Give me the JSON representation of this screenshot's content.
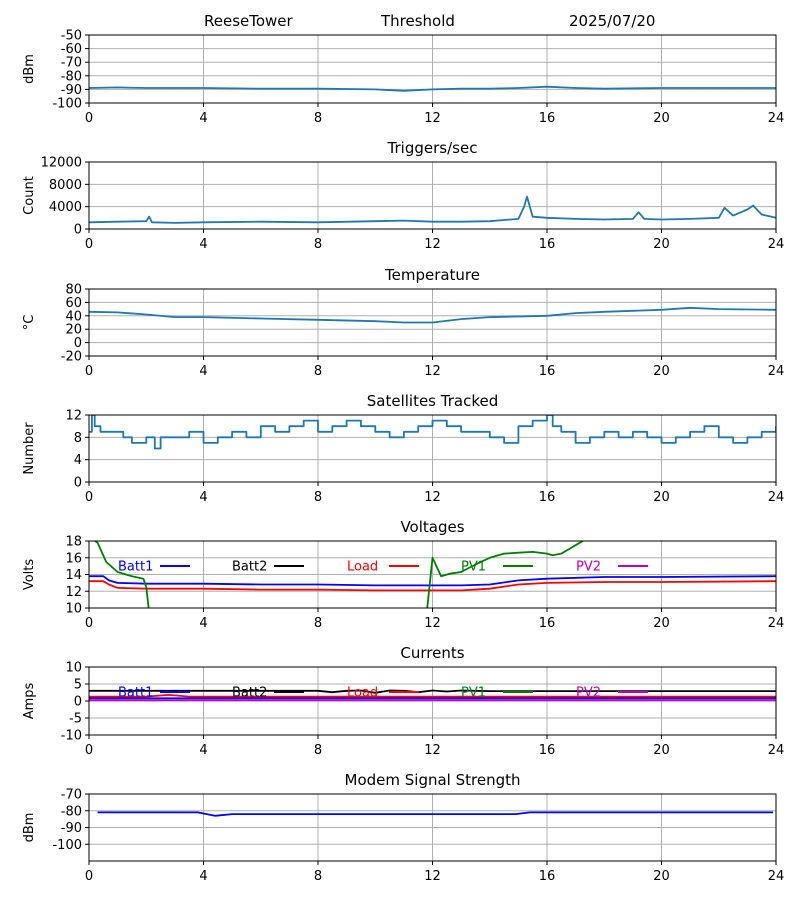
{
  "header": {
    "site": "ReeseTower",
    "mode": "Threshold",
    "date": "2025/07/20"
  },
  "chart_data": [
    {
      "type": "line",
      "title": "",
      "xlabel": "",
      "ylabel": "dBm",
      "xlim": [
        0,
        24
      ],
      "xticks": [
        0,
        4,
        8,
        12,
        16,
        20,
        24
      ],
      "ylim": [
        -100,
        -50
      ],
      "yticks": [
        -100,
        -90,
        -80,
        -70,
        -60,
        -50
      ],
      "grid": true,
      "series": [
        {
          "color": "#1f77b4",
          "x": [
            0,
            1,
            2,
            3,
            4,
            6,
            8,
            10,
            11,
            12,
            13,
            14,
            15,
            16,
            17,
            18,
            20,
            22,
            24
          ],
          "y": [
            -89,
            -88.5,
            -89,
            -89,
            -89,
            -89.5,
            -89.5,
            -90,
            -91,
            -90,
            -89.5,
            -89.5,
            -89,
            -88,
            -89,
            -89.5,
            -89,
            -89,
            -89
          ]
        }
      ]
    },
    {
      "type": "line",
      "title": "Triggers/sec",
      "xlabel": "",
      "ylabel": "Count",
      "xlim": [
        0,
        24
      ],
      "xticks": [
        0,
        4,
        8,
        12,
        16,
        20,
        24
      ],
      "ylim": [
        0,
        12000
      ],
      "yticks": [
        0,
        4000,
        8000,
        12000
      ],
      "grid": true,
      "series": [
        {
          "color": "#1f77b4",
          "x": [
            0,
            1,
            2,
            2.1,
            2.2,
            3,
            4,
            6,
            8,
            10,
            11,
            12,
            13,
            14,
            15,
            15.2,
            15.3,
            15.5,
            16,
            17,
            18,
            19,
            19.2,
            19.4,
            20,
            21,
            22,
            22.2,
            22.5,
            23,
            23.2,
            23.5,
            24
          ],
          "y": [
            1200,
            1300,
            1400,
            2200,
            1200,
            1100,
            1200,
            1300,
            1200,
            1400,
            1500,
            1300,
            1300,
            1400,
            1800,
            4000,
            5800,
            2200,
            2000,
            1800,
            1700,
            1800,
            3000,
            1800,
            1700,
            1800,
            2000,
            3800,
            2400,
            3500,
            4200,
            2600,
            2000
          ]
        }
      ]
    },
    {
      "type": "line",
      "title": "Temperature",
      "xlabel": "",
      "ylabel": "°C",
      "xlim": [
        0,
        24
      ],
      "xticks": [
        0,
        4,
        8,
        12,
        16,
        20,
        24
      ],
      "ylim": [
        -20,
        80
      ],
      "yticks": [
        -20,
        0,
        20,
        40,
        60,
        80
      ],
      "grid": true,
      "series": [
        {
          "color": "#1f77b4",
          "x": [
            0,
            1,
            2,
            3,
            4,
            6,
            8,
            10,
            11,
            12,
            13,
            14,
            16,
            17,
            18,
            20,
            21,
            22,
            24
          ],
          "y": [
            46,
            45,
            42,
            38,
            38,
            36,
            34,
            32,
            30,
            30,
            35,
            38,
            40,
            44,
            46,
            49,
            52,
            50,
            49
          ]
        }
      ]
    },
    {
      "type": "line",
      "title": "Satellites Tracked",
      "xlabel": "",
      "ylabel": "Number",
      "xlim": [
        0,
        24
      ],
      "xticks": [
        0,
        4,
        8,
        12,
        16,
        20,
        24
      ],
      "ylim": [
        0,
        12
      ],
      "yticks": [
        0,
        4,
        8,
        12
      ],
      "grid": true,
      "series": [
        {
          "color": "#1f77b4",
          "shape": "step",
          "x": [
            0,
            0.1,
            0.2,
            0.4,
            1,
            1.2,
            1.5,
            2.0,
            2.3,
            2.5,
            3.0,
            3.5,
            4.0,
            4.5,
            5.0,
            5.5,
            6.0,
            6.5,
            7.0,
            7.5,
            8.0,
            8.5,
            9.0,
            9.5,
            10.0,
            10.5,
            11.0,
            11.5,
            12.0,
            12.5,
            13.0,
            14.0,
            14.5,
            15.0,
            15.5,
            16.0,
            16.2,
            16.5,
            17.0,
            17.5,
            18.0,
            18.5,
            19.0,
            19.5,
            20.0,
            20.5,
            21.0,
            21.5,
            22.0,
            22.5,
            23.0,
            23.5,
            24.0
          ],
          "y": [
            9,
            12,
            10,
            9,
            9,
            8,
            7,
            8,
            6,
            8,
            8,
            9,
            7,
            8,
            9,
            8,
            10,
            9,
            10,
            11,
            9,
            10,
            11,
            10,
            9,
            8,
            9,
            10,
            11,
            10,
            9,
            8,
            7,
            10,
            11,
            12,
            10,
            9,
            7,
            8,
            9,
            8,
            9,
            8,
            7,
            8,
            9,
            10,
            8,
            7,
            8,
            9,
            10
          ]
        }
      ]
    },
    {
      "type": "line",
      "title": "Voltages",
      "xlabel": "",
      "ylabel": "Volts",
      "xlim": [
        0,
        24
      ],
      "xticks": [
        0,
        4,
        8,
        12,
        16,
        20,
        24
      ],
      "ylim": [
        10,
        18
      ],
      "yticks": [
        10,
        12,
        14,
        16,
        18
      ],
      "grid": true,
      "legend": "top, in a single row",
      "series": [
        {
          "name": "Batt1",
          "color": "#0000ff",
          "x": [
            0,
            0.5,
            0.7,
            1.0,
            2,
            4,
            6,
            8,
            10,
            12,
            13,
            14,
            15,
            16,
            18,
            20,
            24
          ],
          "y": [
            13.8,
            13.8,
            13.3,
            13.0,
            12.9,
            12.9,
            12.8,
            12.8,
            12.7,
            12.7,
            12.7,
            12.8,
            13.3,
            13.5,
            13.7,
            13.7,
            13.8
          ]
        },
        {
          "name": "Batt2",
          "color": "#000000",
          "x": [],
          "y": []
        },
        {
          "name": "Load",
          "color": "#ff0000",
          "x": [
            0,
            0.5,
            0.7,
            1.0,
            2,
            4,
            6,
            8,
            10,
            12,
            13,
            14,
            15,
            16,
            18,
            20,
            24
          ],
          "y": [
            13.2,
            13.2,
            12.8,
            12.4,
            12.3,
            12.3,
            12.2,
            12.2,
            12.1,
            12.1,
            12.1,
            12.3,
            12.8,
            13.0,
            13.1,
            13.1,
            13.2
          ]
        },
        {
          "name": "PV1",
          "color": "#008000",
          "x": [
            0,
            0.3,
            0.6,
            1.0,
            1.5,
            1.9,
            2.0,
            2.1,
            11.8,
            12.0,
            12.3,
            12.6,
            13.0,
            13.5,
            14.0,
            14.5,
            15.0,
            15.5,
            16.0,
            16.2,
            16.5,
            17.0,
            17.5
          ],
          "y": [
            18.5,
            17.8,
            15.5,
            14.3,
            13.8,
            13.5,
            12.5,
            9.5,
            9.5,
            16.0,
            13.8,
            14.1,
            14.3,
            15.2,
            16.0,
            16.5,
            16.6,
            16.7,
            16.5,
            16.3,
            16.5,
            17.5,
            18.5
          ]
        },
        {
          "name": "PV2",
          "color": "#bf00bf",
          "x": [],
          "y": []
        }
      ]
    },
    {
      "type": "line",
      "title": "Currents",
      "xlabel": "",
      "ylabel": "Amps",
      "xlim": [
        0,
        24
      ],
      "xticks": [
        0,
        4,
        8,
        12,
        16,
        20,
        24
      ],
      "ylim": [
        -10,
        10
      ],
      "yticks": [
        -10,
        -5,
        0,
        5,
        10
      ],
      "grid": true,
      "legend": "top, in a single row",
      "series": [
        {
          "name": "Batt1",
          "color": "#0000ff",
          "x": [
            0,
            24
          ],
          "y": [
            0.8,
            0.8
          ]
        },
        {
          "name": "Batt2",
          "color": "#000000",
          "x": [
            0,
            8,
            8.5,
            9,
            9.5,
            10,
            10.5,
            11,
            11.5,
            12,
            12.5,
            13,
            13.5,
            14,
            24
          ],
          "y": [
            3.0,
            3.0,
            2.6,
            3.0,
            3.1,
            2.4,
            3.1,
            3.0,
            2.6,
            3.1,
            2.8,
            3.1,
            3.0,
            2.9,
            2.9
          ]
        },
        {
          "name": "Load",
          "color": "#ff0000",
          "x": [
            0,
            2,
            2.8,
            3.5,
            24
          ],
          "y": [
            1.3,
            1.3,
            1.8,
            1.3,
            1.3
          ]
        },
        {
          "name": "PV1",
          "color": "#008000",
          "x": [],
          "y": []
        },
        {
          "name": "PV2",
          "color": "#bf00bf",
          "x": [
            0,
            24
          ],
          "y": [
            0.2,
            0.2
          ]
        }
      ]
    },
    {
      "type": "line",
      "title": "Modem Signal Strength",
      "xlabel": "",
      "ylabel": "dBm",
      "xlim": [
        0,
        24
      ],
      "xticks": [
        0,
        4,
        8,
        12,
        16,
        20,
        24
      ],
      "ylim": [
        -110,
        -70
      ],
      "yticks": [
        -100,
        -90,
        -80,
        -70
      ],
      "grid": true,
      "series": [
        {
          "color": "#0000ff",
          "x": [
            0.3,
            2,
            3.8,
            4.4,
            5,
            10,
            14.9,
            15.4,
            16,
            20,
            23.9
          ],
          "y": [
            -81,
            -81,
            -81,
            -83,
            -82,
            -82,
            -82,
            -81,
            -81,
            -81,
            -81
          ]
        }
      ]
    }
  ]
}
